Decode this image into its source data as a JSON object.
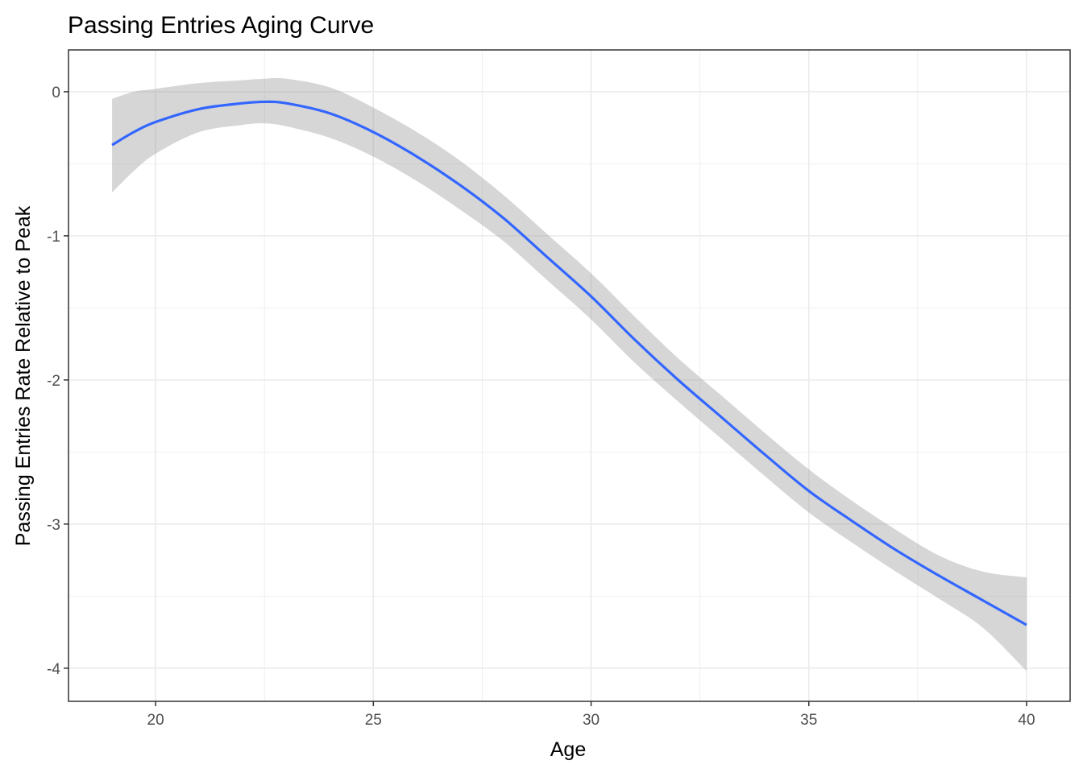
{
  "chart_data": {
    "type": "line",
    "title": "Passing Entries Aging Curve",
    "xlabel": "Age",
    "ylabel": "Passing Entries Rate Relative to Peak",
    "xlim": [
      18.0,
      41.0
    ],
    "ylim": [
      -4.23,
      0.29
    ],
    "x_ticks": [
      20,
      25,
      30,
      35,
      40
    ],
    "x_minor_ticks": [
      22.5,
      27.5,
      32.5,
      37.5
    ],
    "x_tick_labels": [
      "20",
      "25",
      "30",
      "35",
      "40"
    ],
    "y_ticks": [
      0,
      -1,
      -2,
      -3,
      -4
    ],
    "y_minor_ticks": [
      -0.5,
      -1.5,
      -2.5,
      -3.5
    ],
    "y_tick_labels": [
      "0",
      "-1",
      "-2",
      "-3",
      "-4"
    ],
    "grid": true,
    "legend": "none",
    "colors": {
      "line": "#3366FF",
      "ribbon": "#999999",
      "grid": "#ebebeb",
      "border": "#333333",
      "ticks": "#333333",
      "tick_text": "#4d4d4d"
    },
    "series": [
      {
        "x": [
          19,
          19.5,
          20,
          21,
          22,
          22.5,
          23,
          24,
          25,
          26,
          27,
          28,
          29,
          30,
          31,
          32,
          33,
          34,
          35,
          36,
          37,
          38,
          39,
          40
        ],
        "y": [
          -0.37,
          -0.28,
          -0.21,
          -0.12,
          -0.08,
          -0.07,
          -0.08,
          -0.15,
          -0.28,
          -0.45,
          -0.65,
          -0.88,
          -1.15,
          -1.42,
          -1.72,
          -2.0,
          -2.26,
          -2.52,
          -2.77,
          -2.98,
          -3.18,
          -3.36,
          -3.53,
          -3.7
        ],
        "lower": [
          -0.7,
          -0.55,
          -0.43,
          -0.28,
          -0.23,
          -0.22,
          -0.24,
          -0.32,
          -0.45,
          -0.62,
          -0.82,
          -1.04,
          -1.31,
          -1.58,
          -1.88,
          -2.15,
          -2.41,
          -2.67,
          -2.92,
          -3.13,
          -3.33,
          -3.52,
          -3.72,
          -4.02
        ],
        "upper": [
          -0.05,
          0.0,
          0.02,
          0.06,
          0.08,
          0.09,
          0.09,
          0.03,
          -0.11,
          -0.28,
          -0.48,
          -0.72,
          -0.99,
          -1.26,
          -1.56,
          -1.85,
          -2.11,
          -2.37,
          -2.62,
          -2.84,
          -3.04,
          -3.22,
          -3.33,
          -3.37
        ]
      }
    ]
  }
}
